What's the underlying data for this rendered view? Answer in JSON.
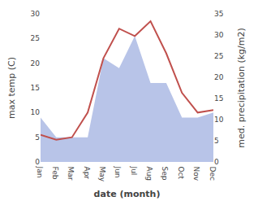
{
  "chart_data": {
    "type": "line",
    "categories": [
      "Jan",
      "Feb",
      "Mar",
      "Apr",
      "May",
      "Jun",
      "Jul",
      "Aug",
      "Sep",
      "Oct",
      "Nov",
      "Dec"
    ],
    "series": [
      {
        "type": "area",
        "color": "#b8c4e8",
        "values": [
          9.0,
          5.0,
          5.0,
          5.0,
          21.0,
          19.0,
          25.5,
          16.0,
          16.0,
          9.0,
          9.0,
          10.0
        ]
      },
      {
        "type": "line",
        "color": "#c0504d",
        "values": [
          5.5,
          4.5,
          5.0,
          10.0,
          21.0,
          27.0,
          25.5,
          28.5,
          22.0,
          14.0,
          10.0,
          10.5
        ]
      }
    ],
    "xlabel": "date (month)",
    "ylabel": "max temp (C)",
    "y2label": "med. precipitation (kg/m2)",
    "ylim": [
      0,
      30
    ],
    "yticks": [
      0,
      5,
      10,
      15,
      20,
      25,
      30
    ],
    "y2lim": [
      0,
      35
    ],
    "y2ticks": [
      0,
      5,
      10,
      15,
      20,
      25,
      30,
      35
    ],
    "grid": false
  }
}
